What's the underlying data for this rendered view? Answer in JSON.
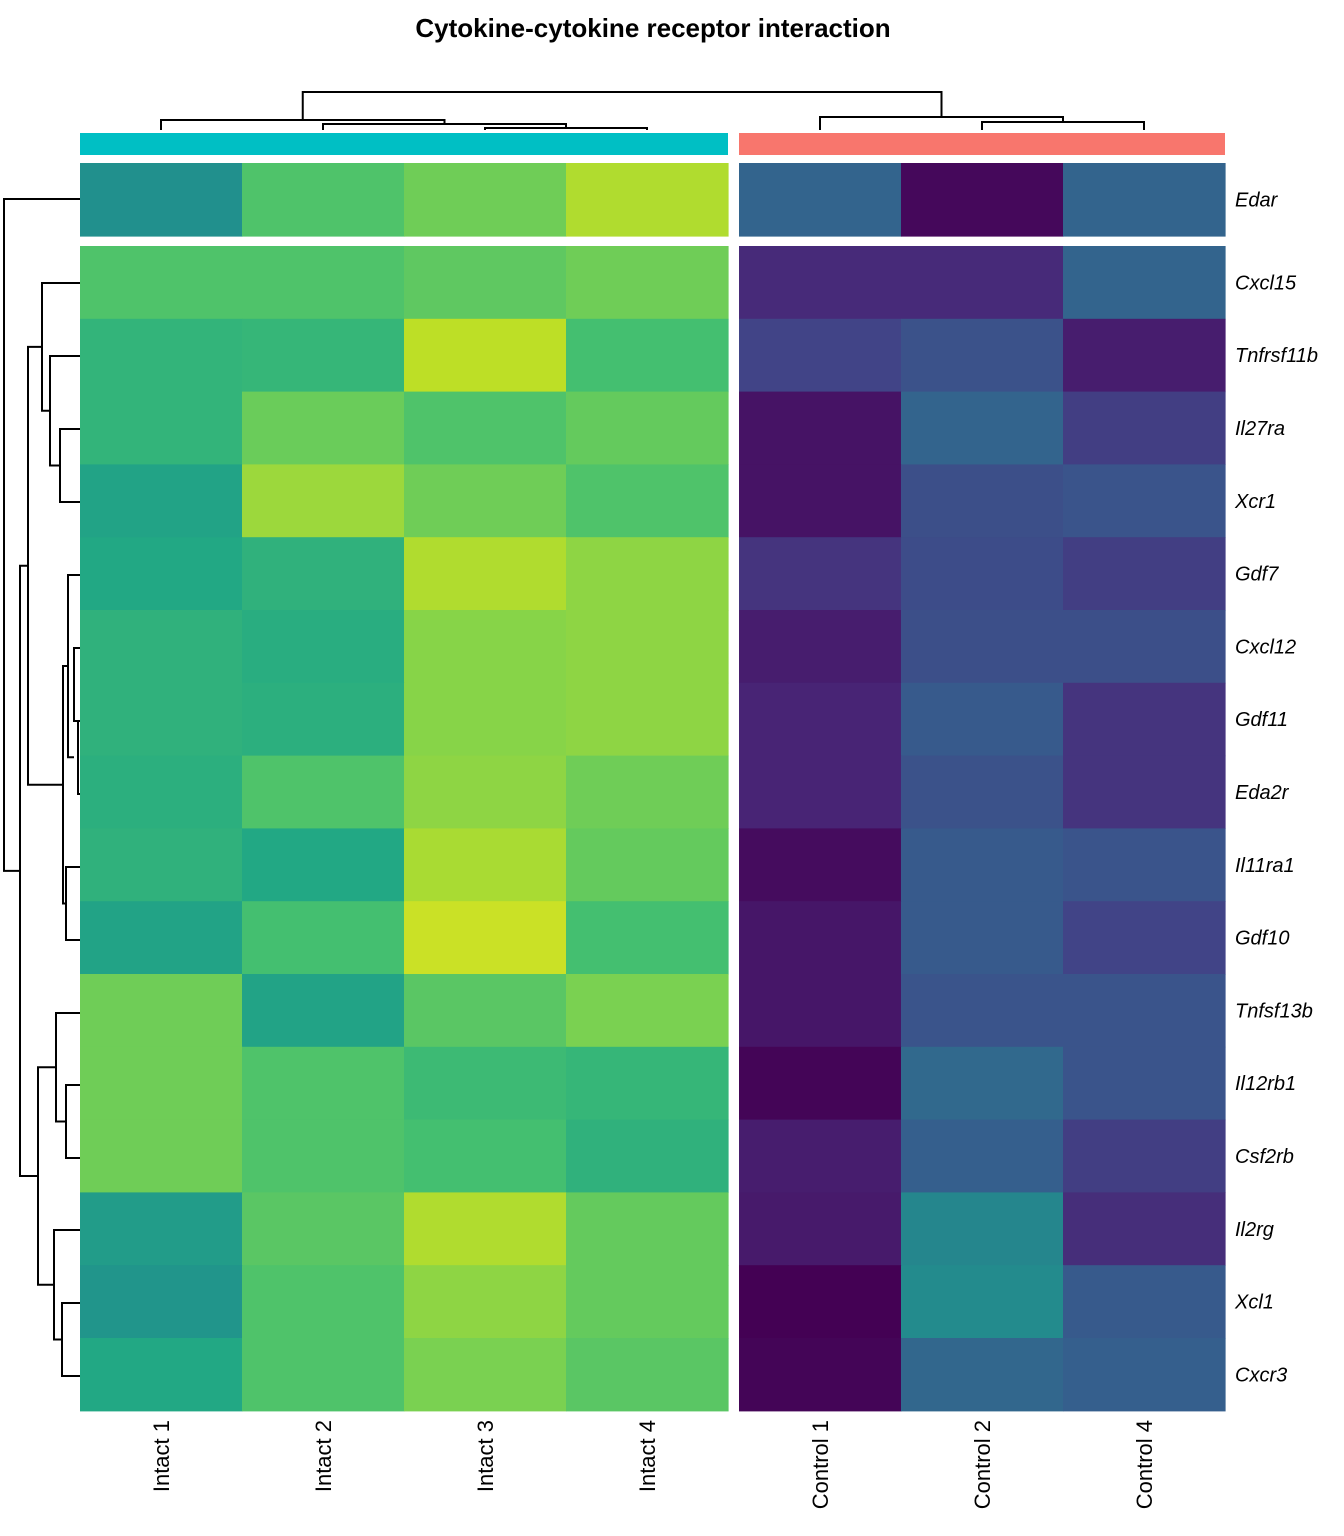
{
  "chart_data": {
    "type": "heatmap",
    "title": "Cytokine-cytokine receptor interaction",
    "columns": [
      "Intact 1",
      "Intact 2",
      "Intact 3",
      "Intact 4",
      "Control 1",
      "Control 2",
      "Control 4"
    ],
    "column_groups": [
      {
        "name": "Intact",
        "color": "#00BFC4",
        "columns": [
          "Intact 1",
          "Intact 2",
          "Intact 3",
          "Intact 4"
        ]
      },
      {
        "name": "Control",
        "color": "#F8766D",
        "columns": [
          "Control 1",
          "Control 2",
          "Control 4"
        ]
      }
    ],
    "row_groups": [
      [
        "Edar"
      ],
      [
        "Cxcl15",
        "Tnfrsf11b",
        "Il27ra",
        "Xcr1",
        "Gdf7",
        "Cxcl12",
        "Gdf11",
        "Eda2r",
        "Il11ra1",
        "Gdf10",
        "Tnfsf13b",
        "Il12rb1",
        "Csf2rb",
        "Il2rg",
        "Xcl1",
        "Cxcr3"
      ]
    ],
    "rows": [
      "Edar",
      "Cxcl15",
      "Tnfrsf11b",
      "Il27ra",
      "Xcr1",
      "Gdf7",
      "Cxcl12",
      "Gdf11",
      "Eda2r",
      "Il11ra1",
      "Gdf10",
      "Tnfsf13b",
      "Il12rb1",
      "Csf2rb",
      "Il2rg",
      "Xcl1",
      "Cxcr3"
    ],
    "colormap": "viridis",
    "value_scale": [
      0,
      1
    ],
    "values": [
      [
        0.5,
        0.72,
        0.78,
        0.88,
        0.32,
        0.02,
        0.32
      ],
      [
        0.72,
        0.72,
        0.75,
        0.78,
        0.12,
        0.12,
        0.32
      ],
      [
        0.65,
        0.66,
        0.9,
        0.7,
        0.2,
        0.25,
        0.08
      ],
      [
        0.65,
        0.77,
        0.72,
        0.76,
        0.05,
        0.32,
        0.18
      ],
      [
        0.58,
        0.85,
        0.78,
        0.72,
        0.05,
        0.24,
        0.26
      ],
      [
        0.6,
        0.64,
        0.88,
        0.83,
        0.15,
        0.23,
        0.18
      ],
      [
        0.64,
        0.62,
        0.82,
        0.83,
        0.08,
        0.24,
        0.24
      ],
      [
        0.64,
        0.63,
        0.82,
        0.83,
        0.1,
        0.28,
        0.15
      ],
      [
        0.63,
        0.72,
        0.83,
        0.78,
        0.1,
        0.25,
        0.15
      ],
      [
        0.64,
        0.6,
        0.87,
        0.76,
        0.03,
        0.28,
        0.26
      ],
      [
        0.58,
        0.7,
        0.92,
        0.7,
        0.06,
        0.28,
        0.2
      ],
      [
        0.78,
        0.58,
        0.74,
        0.8,
        0.06,
        0.26,
        0.26
      ],
      [
        0.78,
        0.72,
        0.68,
        0.66,
        0.01,
        0.34,
        0.26
      ],
      [
        0.78,
        0.72,
        0.7,
        0.64,
        0.08,
        0.3,
        0.18
      ],
      [
        0.55,
        0.74,
        0.88,
        0.76,
        0.07,
        0.46,
        0.13
      ],
      [
        0.52,
        0.72,
        0.83,
        0.76,
        0.0,
        0.48,
        0.28
      ],
      [
        0.6,
        0.72,
        0.8,
        0.74,
        0.01,
        0.33,
        0.3
      ]
    ],
    "xlabel": "",
    "ylabel": ""
  }
}
